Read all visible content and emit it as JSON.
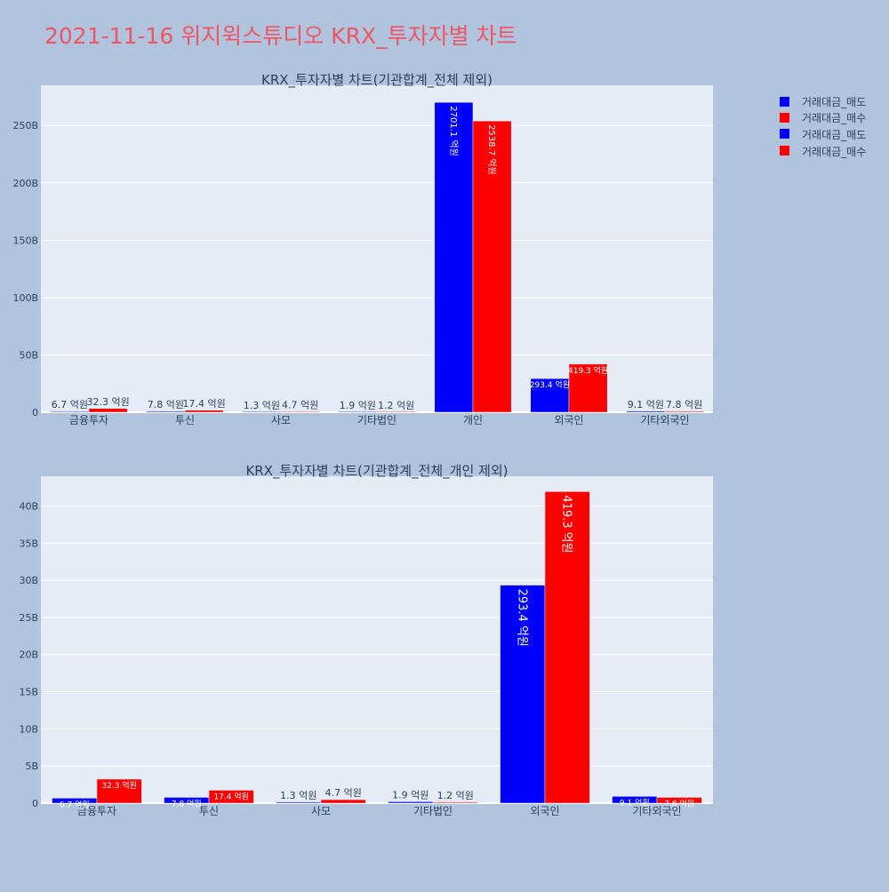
{
  "page_title": "2021-11-16 위지윅스튜디오 KRX_투자자별 차트",
  "colors": {
    "sell": "#0000ff",
    "buy": "#ff0000",
    "title": "#ef5565",
    "plot_bg": "#e5ecf6",
    "paper_bg": "#b0c4de"
  },
  "legend": [
    {
      "label": "거래대금_매도",
      "color": "#0000ff"
    },
    {
      "label": "거래대금_매수",
      "color": "#ff0000"
    },
    {
      "label": "거래대금_매도",
      "color": "#0000ff"
    },
    {
      "label": "거래대금_매수",
      "color": "#ff0000"
    }
  ],
  "chart_data": [
    {
      "type": "bar",
      "title": "KRX_투자자별 차트(기관합계_전체 제외)",
      "categories": [
        "금융투자",
        "투신",
        "사모",
        "기타법인",
        "개인",
        "외국인",
        "기타외국인"
      ],
      "ylim": [
        0,
        285
      ],
      "yticks": [
        0,
        50,
        100,
        150,
        200,
        250
      ],
      "ytick_labels": [
        "0",
        "50B",
        "100B",
        "150B",
        "200B",
        "250B"
      ],
      "grid": true,
      "legend_position": "top-right",
      "series": [
        {
          "name": "거래대금_매도",
          "color": "#0000ff",
          "values": [
            0.67,
            0.78,
            0.13,
            0.19,
            270.11,
            29.34,
            0.91
          ],
          "labels": [
            "6.7 억원",
            "7.8 억원",
            "1.3 억원",
            "1.9 억원",
            "2701.1 억원",
            "293.4 억원",
            "9.1 억원"
          ]
        },
        {
          "name": "거래대금_매수",
          "color": "#ff0000",
          "values": [
            3.23,
            1.74,
            0.47,
            0.12,
            253.87,
            41.93,
            0.78
          ],
          "labels": [
            "32.3 억원",
            "17.4 억원",
            "4.7 억원",
            "1.2 억원",
            "2538.7 억원",
            "419.3 억원",
            "7.8 억원"
          ]
        }
      ]
    },
    {
      "type": "bar",
      "title": "KRX_투자자별 차트(기관합계_전체_개인 제외)",
      "categories": [
        "금융투자",
        "투신",
        "사모",
        "기타법인",
        "외국인",
        "기타외국인"
      ],
      "ylim": [
        0,
        44
      ],
      "yticks": [
        0,
        5,
        10,
        15,
        20,
        25,
        30,
        35,
        40
      ],
      "ytick_labels": [
        "0",
        "5B",
        "10B",
        "15B",
        "20B",
        "25B",
        "30B",
        "35B",
        "40B"
      ],
      "grid": true,
      "series": [
        {
          "name": "거래대금_매도",
          "color": "#0000ff",
          "values": [
            0.67,
            0.78,
            0.13,
            0.19,
            29.34,
            0.91
          ],
          "labels": [
            "6.7 억원",
            "7.8 억원",
            "1.3 억원",
            "1.9 억원",
            "293.4 억원",
            "9.1 억원"
          ]
        },
        {
          "name": "거래대금_매수",
          "color": "#ff0000",
          "values": [
            3.23,
            1.74,
            0.47,
            0.12,
            41.93,
            0.78
          ],
          "labels": [
            "32.3 억원",
            "17.4 억원",
            "4.7 억원",
            "1.2 억원",
            "419.3 억원",
            "7.8 억원"
          ]
        }
      ]
    }
  ]
}
